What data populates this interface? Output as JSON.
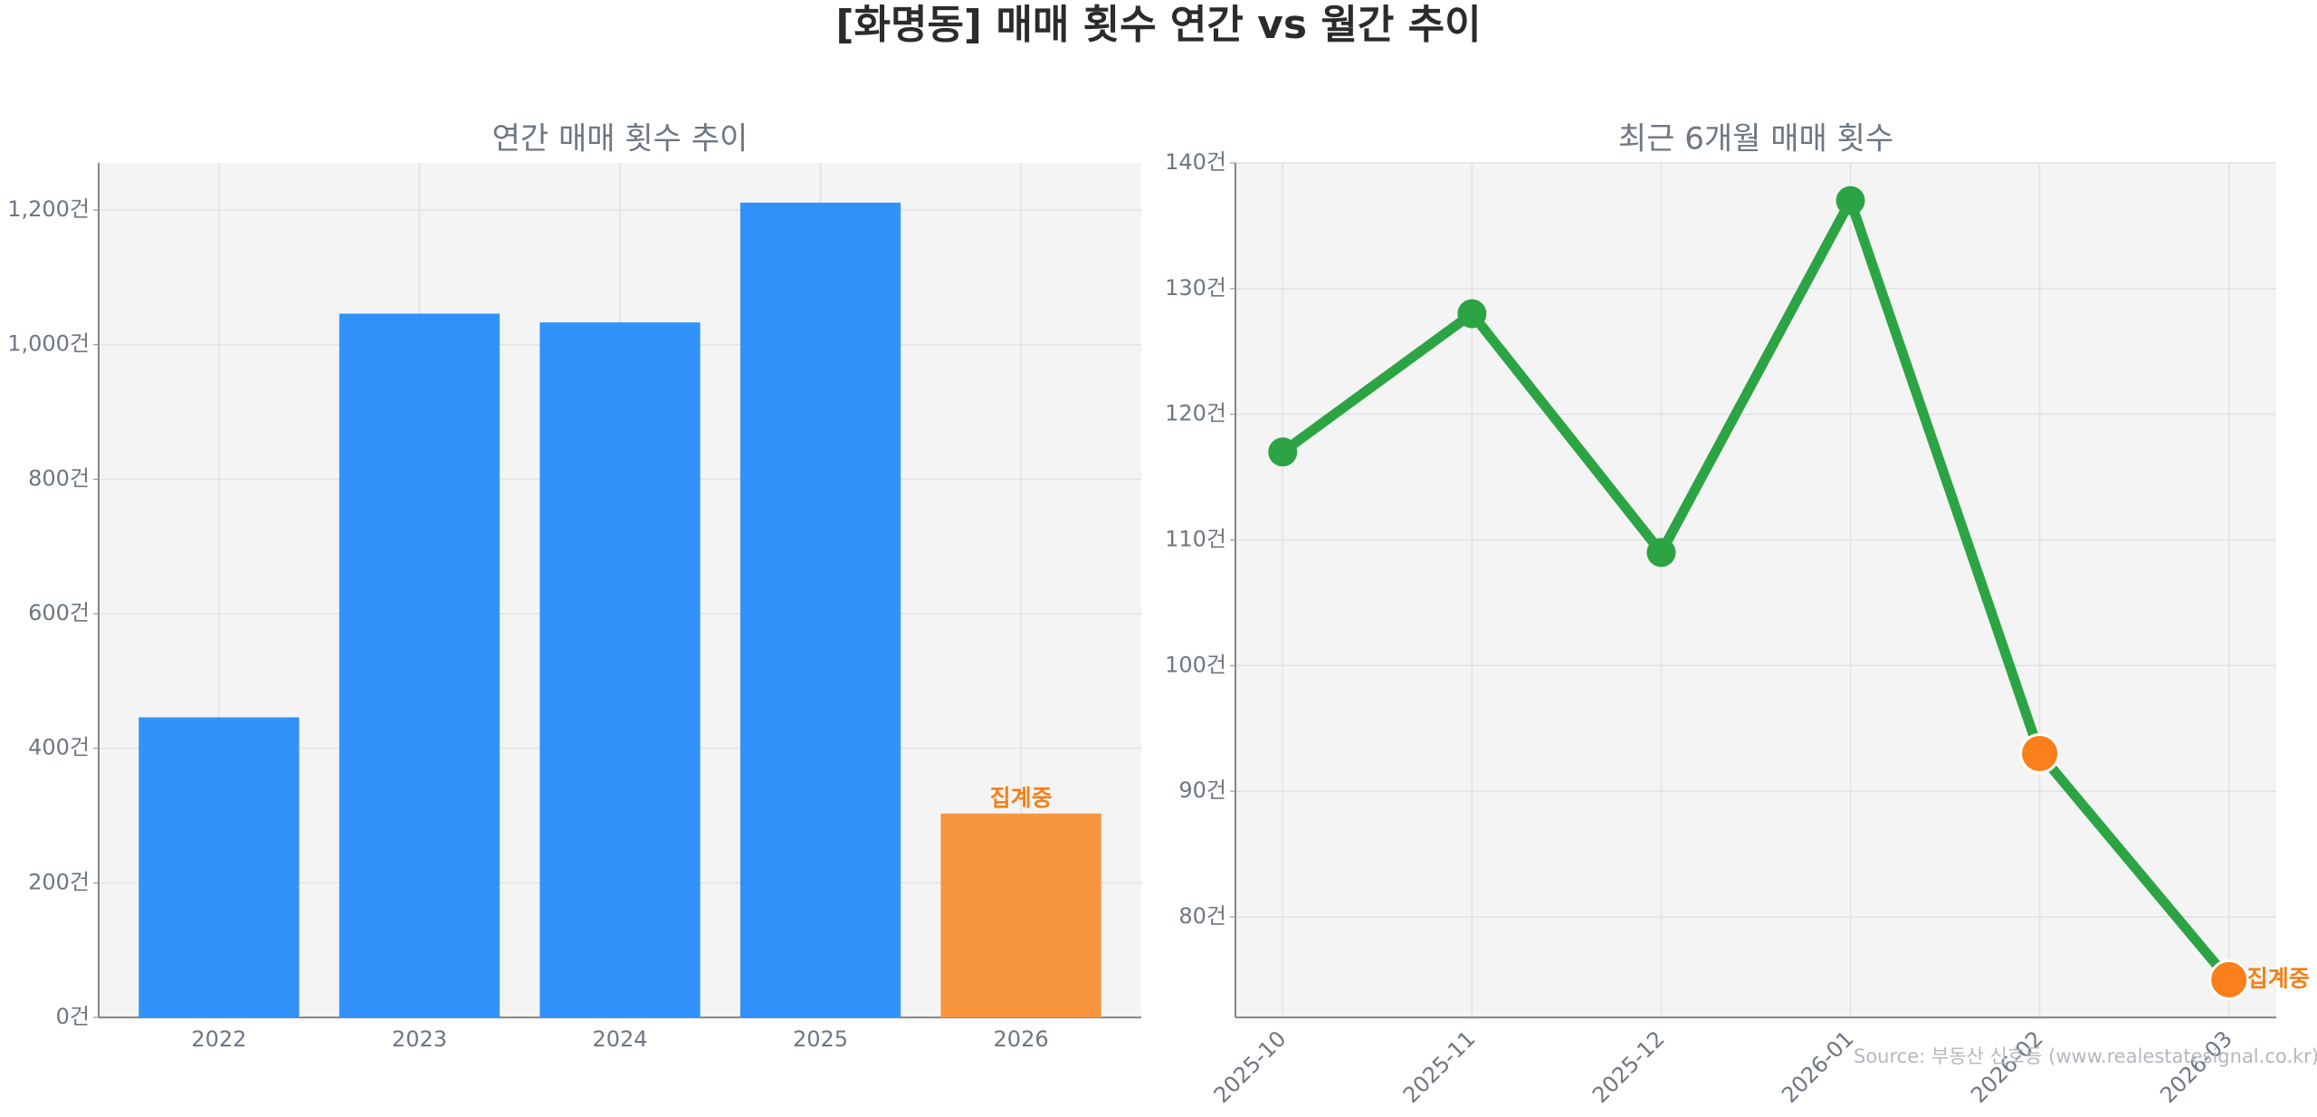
{
  "title": "[화명동] 매매 횟수 연간 vs 월간 추이",
  "source": "Source: 부동산 신호등 (www.realestatesignal.co.kr)",
  "chart_data": [
    {
      "type": "bar",
      "title": "연간 매매 횟수 추이",
      "categories": [
        "2022",
        "2023",
        "2024",
        "2025",
        "2026"
      ],
      "values": [
        446,
        1046,
        1033,
        1211,
        303
      ],
      "colors": [
        "#3192fa",
        "#3192fa",
        "#3192fa",
        "#3192fa",
        "#f7963e"
      ],
      "annotation": "집계중",
      "annotation_color": "#f47f17",
      "ylim": [
        0,
        1270
      ],
      "yticks": [
        {
          "value": 0,
          "label": "0건"
        },
        {
          "value": 200,
          "label": "200건"
        },
        {
          "value": 400,
          "label": "400건"
        },
        {
          "value": 600,
          "label": "600건"
        },
        {
          "value": 800,
          "label": "800건"
        },
        {
          "value": 1000,
          "label": "1,000건"
        },
        {
          "value": 1200,
          "label": "1,200건"
        }
      ],
      "grid": true
    },
    {
      "type": "line",
      "title": "최근 6개월 매매 횟수",
      "categories": [
        "2025-10",
        "2025-11",
        "2025-12",
        "2026-01",
        "2026-02",
        "2026-03"
      ],
      "values": [
        117,
        128,
        109,
        137,
        93,
        75
      ],
      "color": "#2ca444",
      "marker_colors": [
        "#2ca444",
        "#2ca444",
        "#2ca444",
        "#2ca444",
        "#fb7f1a",
        "#fb7f1a"
      ],
      "annotation": "집계중",
      "annotation_color": "#f47f17",
      "ylim": [
        72,
        140
      ],
      "yticks": [
        {
          "value": 80,
          "label": "80건"
        },
        {
          "value": 90,
          "label": "90건"
        },
        {
          "value": 100,
          "label": "100건"
        },
        {
          "value": 110,
          "label": "110건"
        },
        {
          "value": 120,
          "label": "120건"
        },
        {
          "value": 130,
          "label": "130건"
        },
        {
          "value": 140,
          "label": "140건"
        }
      ],
      "grid": true
    }
  ]
}
